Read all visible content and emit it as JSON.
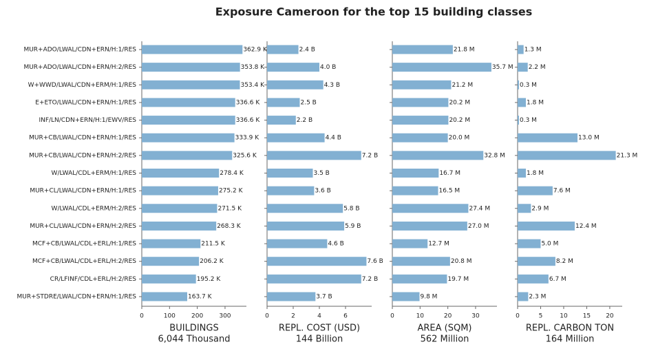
{
  "chart_data": {
    "type": "bar",
    "orientation": "horizontal",
    "title": "Exposure Cameroon for the top 15 building classes",
    "color": "#82b0d2",
    "categories": [
      "MUR+ADO/LWAL/CDN+ERN/H:1/RES",
      "MUR+ADO/LWAL/CDN+ERN/H:2/RES",
      "W+WWD/LWAL/CDN+ERM/H:1/RES",
      "E+ETO/LWAL/CDN+ERN/H:1/RES",
      "INF/LN/CDN+ERN/H:1/EWV/RES",
      "MUR+CB/LWAL/CDN+ERN/H:1/RES",
      "MUR+CB/LWAL/CDN+ERN/H:2/RES",
      "W/LWAL/CDL+ERM/H:1/RES",
      "MUR+CL/LWAL/CDN+ERN/H:1/RES",
      "W/LWAL/CDL+ERM/H:2/RES",
      "MUR+CL/LWAL/CDN+ERN/H:2/RES",
      "MCF+CB/LWAL/CDL+ERL/H:1/RES",
      "MCF+CB/LWAL/CDL+ERL/H:2/RES",
      "CR/LFINF/CDL+ERL/H:2/RES",
      "MUR+STDRE/LWAL/CDN+ERN/H:1/RES"
    ],
    "panels": [
      {
        "xlabel": "BUILDINGS",
        "subtitle": "6,044 Thousand",
        "xlim": [
          0,
          377
        ],
        "xticks": [
          0,
          100,
          200,
          300
        ],
        "values": [
          362.9,
          353.8,
          353.4,
          336.6,
          336.6,
          333.9,
          325.6,
          278.4,
          275.2,
          271.5,
          268.3,
          211.5,
          206.2,
          195.2,
          163.7
        ],
        "value_labels": [
          "362.9 K",
          "353.8 K",
          "353.4 K",
          "336.6 K",
          "336.6 K",
          "333.9 K",
          "325.6 K",
          "278.4 K",
          "275.2 K",
          "271.5 K",
          "268.3 K",
          "211.5 K",
          "206.2 K",
          "195.2 K",
          "163.7 K"
        ]
      },
      {
        "xlabel": "REPL. COST (USD)",
        "subtitle": "144 Billion",
        "xlim": [
          0,
          8
        ],
        "xticks": [
          0,
          2,
          4,
          6
        ],
        "values": [
          2.4,
          4.0,
          4.3,
          2.5,
          2.2,
          4.4,
          7.2,
          3.5,
          3.6,
          5.8,
          5.9,
          4.6,
          7.6,
          7.2,
          3.7
        ],
        "value_labels": [
          "2.4 B",
          "4.0 B",
          "4.3 B",
          "2.5 B",
          "2.2 B",
          "4.4 B",
          "7.2 B",
          "3.5 B",
          "3.6 B",
          "5.8 B",
          "5.9 B",
          "4.6 B",
          "7.6 B",
          "7.2 B",
          "3.7 B"
        ]
      },
      {
        "xlabel": "AREA (SQM)",
        "subtitle": "562 Million",
        "xlim": [
          0,
          37.7
        ],
        "xticks": [
          0,
          10,
          20,
          30
        ],
        "values": [
          21.8,
          35.7,
          21.2,
          20.2,
          20.2,
          20.0,
          32.8,
          16.7,
          16.5,
          27.4,
          27.0,
          12.7,
          20.8,
          19.7,
          9.8
        ],
        "value_labels": [
          "21.8 M",
          "35.7 M",
          "21.2 M",
          "20.2 M",
          "20.2 M",
          "20.0 M",
          "32.8 M",
          "16.7 M",
          "16.5 M",
          "27.4 M",
          "27.0 M",
          "12.7 M",
          "20.8 M",
          "19.7 M",
          "9.8 M"
        ]
      },
      {
        "xlabel": "REPL. CARBON TON",
        "subtitle": "164 Million",
        "xlim": [
          0,
          22.7
        ],
        "xticks": [
          0,
          5,
          10,
          15,
          20
        ],
        "values": [
          1.3,
          2.2,
          0.3,
          1.8,
          0.3,
          13.0,
          21.3,
          1.8,
          7.6,
          2.9,
          12.4,
          5.0,
          8.2,
          6.7,
          2.3
        ],
        "value_labels": [
          "1.3 M",
          "2.2 M",
          "0.3 M",
          "1.8 M",
          "0.3 M",
          "13.0 M",
          "21.3 M",
          "1.8 M",
          "7.6 M",
          "2.9 M",
          "12.4 M",
          "5.0 M",
          "8.2 M",
          "6.7 M",
          "2.3 M"
        ]
      }
    ]
  }
}
